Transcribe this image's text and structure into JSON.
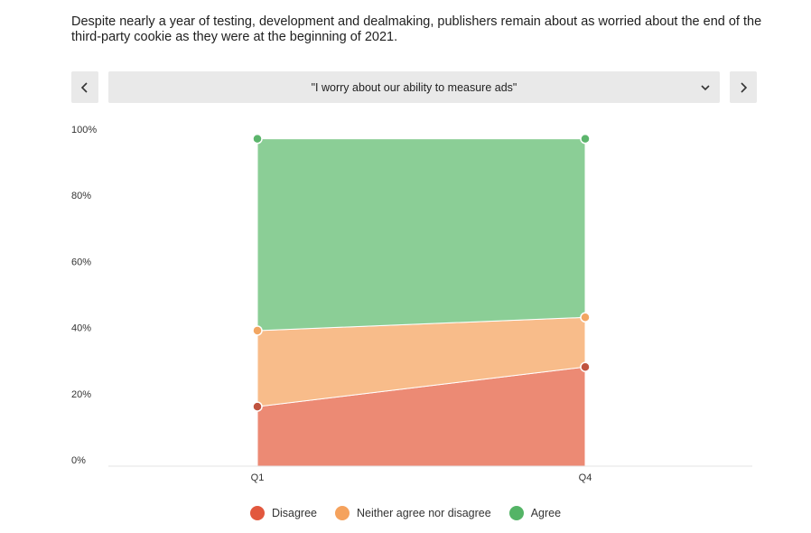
{
  "headline": "Despite nearly a year of testing, development and dealmaking, publishers remain about as worried about the end of the third-party cookie as they were at the beginning of 2021.",
  "controls": {
    "prev_icon": "chevron-left-icon",
    "next_icon": "chevron-right-icon",
    "dropdown_icon": "chevron-down-icon",
    "selected_question": "\"I worry about our ability to measure ads\""
  },
  "colors": {
    "disagree_fill": "#ec8a74",
    "disagree_marker": "#c0533f",
    "neutral_fill": "#f8bc8a",
    "neutral_marker": "#f2a662",
    "agree_fill": "#8bce96",
    "agree_marker": "#5cb56c",
    "legend_disagree": "#e2583e",
    "legend_neutral": "#f5a25d",
    "legend_agree": "#54b466"
  },
  "chart_data": {
    "type": "area",
    "stacked": true,
    "categories": [
      "Q1",
      "Q4"
    ],
    "series": [
      {
        "name": "Disagree",
        "values": [
          18,
          30
        ]
      },
      {
        "name": "Neither agree nor disagree",
        "values": [
          23,
          15
        ]
      },
      {
        "name": "Agree",
        "values": [
          58,
          54
        ]
      }
    ],
    "y_ticks": [
      "0%",
      "20%",
      "40%",
      "60%",
      "80%",
      "100%"
    ],
    "ylim": [
      0,
      100
    ],
    "grid": false,
    "legend_position": "bottom"
  }
}
